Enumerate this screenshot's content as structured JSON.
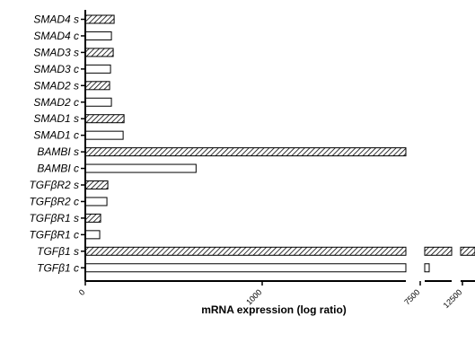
{
  "chart_data": {
    "type": "bar",
    "orientation": "horizontal",
    "categories": [
      "SMAD4 s",
      "SMAD4 c",
      "SMAD3 s",
      "SMAD3 c",
      "SMAD2 s",
      "SMAD2 c",
      "SMAD1 s",
      "SMAD1 c",
      "BAMBI s",
      "BAMBI c",
      "TGFβR2 s",
      "TGFβR2 c",
      "TGFβR1 s",
      "TGFβR1 c",
      "TGFβ1 s",
      "TGFβ1 c"
    ],
    "values": [
      160,
      145,
      155,
      140,
      135,
      145,
      215,
      210,
      5400,
      615,
      125,
      120,
      85,
      80,
      13000,
      8600
    ],
    "bar_styles": [
      "hatched",
      "plain",
      "hatched",
      "plain",
      "hatched",
      "plain",
      "hatched",
      "plain",
      "hatched",
      "plain",
      "hatched",
      "plain",
      "hatched",
      "plain",
      "hatched",
      "plain"
    ],
    "xlabel": "mRNA expression (log ratio)",
    "ylabel": "",
    "title": "",
    "x_tick_labels": [
      "0",
      "1000",
      "7500",
      "12500"
    ],
    "x_axis_breaks": true,
    "grid": false,
    "legend": "none",
    "colors": {
      "bar_edge": "#000000",
      "hatch": "#000000",
      "plain_fill": "#ffffff"
    }
  }
}
